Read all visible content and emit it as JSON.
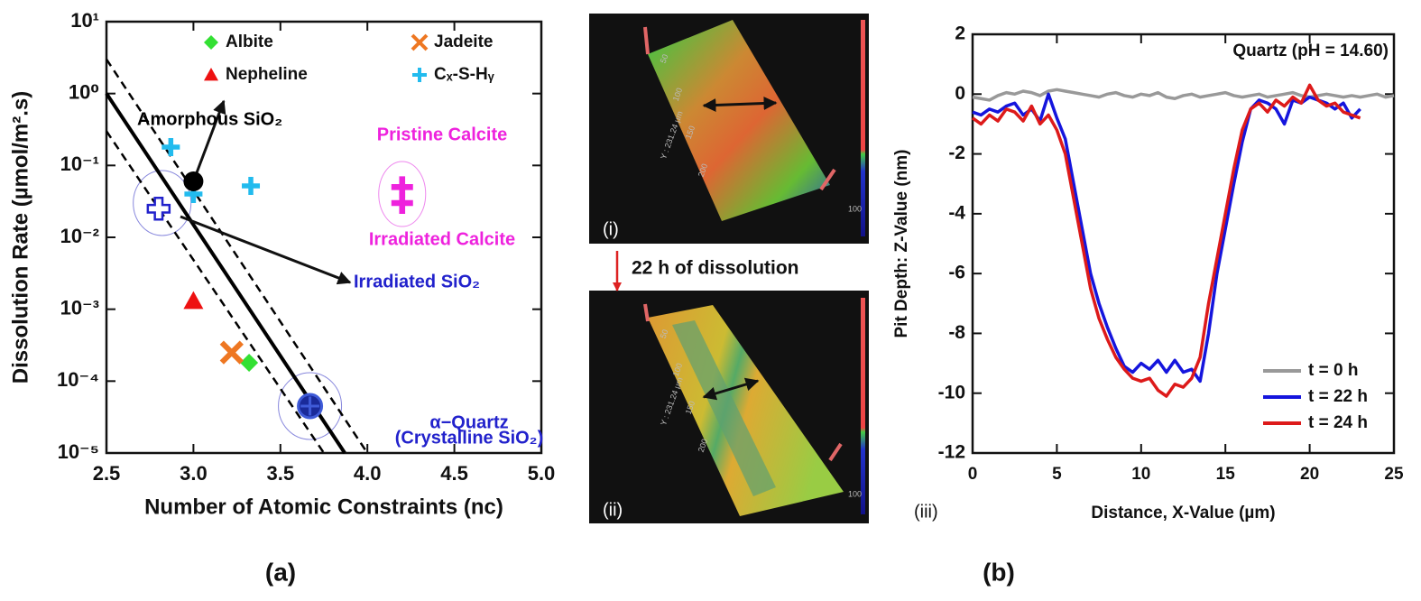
{
  "chart_data": [
    {
      "type": "scatter",
      "panel_label": "(a)",
      "xlabel": "Number of Atomic Constraints (nc)",
      "ylabel": "Dissolution Rate (µmol/m².s)",
      "xlim": [
        2.5,
        5.0
      ],
      "xticks": [
        2.5,
        {
          "value": 3,
          "label": "3.0"
        },
        3.5,
        {
          "value": 4,
          "label": "4.0"
        },
        4.5,
        {
          "value": 5,
          "label": "5.0"
        }
      ],
      "ylim": [
        1e-05,
        10
      ],
      "log_y": true,
      "yticks": [
        {
          "value": 1e-05,
          "label": "10⁻⁵"
        },
        {
          "value": 0.0001,
          "label": "10⁻⁴"
        },
        {
          "value": 0.001,
          "label": "10⁻³"
        },
        {
          "value": 0.01,
          "label": "10⁻²"
        },
        {
          "value": 0.1,
          "label": "10⁻¹"
        },
        {
          "value": 1,
          "label": "10⁰"
        },
        {
          "value": 10,
          "label": "10¹"
        }
      ],
      "legend": "top",
      "series": [
        {
          "name": "Albite",
          "color": "#33e033",
          "marker": "diamond",
          "x": [
            3.32
          ],
          "values": [
            0.00018
          ]
        },
        {
          "name": "Jadeite",
          "color": "#ee7722",
          "marker": "x",
          "x": [
            3.22
          ],
          "values": [
            0.00025
          ]
        },
        {
          "name": "Nepheline",
          "color": "#ee1111",
          "marker": "triangle",
          "x": [
            3.0
          ],
          "values": [
            0.0013
          ]
        },
        {
          "name": "Cₓ-S-Hᵧ",
          "color": "#22bbee",
          "marker": "plus",
          "x": [
            2.87,
            3.0,
            3.33
          ],
          "values": [
            0.18,
            0.04,
            0.052
          ]
        }
      ],
      "fit_lines": [
        {
          "style": "solid",
          "color": "#000000",
          "x": [
            2.5,
            3.87
          ],
          "values": [
            1,
            1e-05
          ]
        },
        {
          "style": "dashed",
          "color": "#000000",
          "x": [
            2.5,
            4.0
          ],
          "values": [
            3,
            1e-05
          ]
        },
        {
          "style": "dashed",
          "color": "#000000",
          "x": [
            2.5,
            3.75
          ],
          "values": [
            0.3,
            1e-05
          ]
        }
      ],
      "annotated_points": [
        {
          "label": [
            "Amorphous SiO₂"
          ],
          "color": "#000000",
          "marker": "circle",
          "x": 3.0,
          "value": 0.06
        },
        {
          "label": [
            "Irradiated SiO₂"
          ],
          "color": "#2222cc",
          "marker": "open-plus",
          "x": 2.8,
          "value": 0.025
        },
        {
          "label": [
            "Pristine Calcite"
          ],
          "color": "#ee22dd",
          "marker": "plus",
          "x": 4.2,
          "value": 0.05
        },
        {
          "label": [
            "Irradiated Calcite"
          ],
          "color": "#ee22dd",
          "marker": "plus",
          "x": 4.2,
          "value": 0.03
        },
        {
          "label": [
            "α−Quartz",
            "(Crystalline SiO₂)"
          ],
          "color": "#1a2a9a",
          "marker": "circle-plus",
          "x": 3.67,
          "value": 4.5e-05
        }
      ]
    },
    {
      "type": "line",
      "panel_label": "(b)",
      "inner_label": "(iii)",
      "xlabel": "Distance, X-Value (µm)",
      "ylabel": "Pit Depth: Z-Value (nm)",
      "annotation": "Quartz (pH = 14.60)",
      "xlim": [
        0,
        25
      ],
      "xticks": [
        0,
        5,
        10,
        15,
        20,
        25
      ],
      "ylim": [
        -12,
        2
      ],
      "yticks": [
        -12,
        -10,
        -8,
        -6,
        -4,
        -2,
        0,
        2
      ],
      "legend": "lower right",
      "x": [
        0,
        0.5,
        1,
        1.5,
        2,
        2.5,
        3,
        3.5,
        4,
        4.5,
        5,
        5.5,
        6,
        6.5,
        7,
        7.5,
        8,
        8.5,
        9,
        9.5,
        10,
        10.5,
        11,
        11.5,
        12,
        12.5,
        13,
        13.5,
        14,
        14.5,
        15,
        15.5,
        16,
        16.5,
        17,
        17.5,
        18,
        18.5,
        19,
        19.5,
        20,
        20.5,
        21,
        21.5,
        22,
        22.5,
        23,
        23.5,
        24,
        24.5,
        25
      ],
      "series": [
        {
          "name": "t = 0 h",
          "color": "#999999",
          "values": [
            -0.1,
            -0.15,
            -0.2,
            -0.05,
            0.05,
            0,
            0.1,
            0.05,
            -0.05,
            0.1,
            0.15,
            0.1,
            0.05,
            0,
            -0.05,
            -0.1,
            0,
            0.05,
            -0.05,
            -0.1,
            0,
            -0.05,
            0.05,
            -0.1,
            -0.15,
            -0.05,
            0,
            -0.1,
            -0.05,
            0,
            0.05,
            -0.05,
            -0.1,
            -0.05,
            0,
            -0.1,
            -0.05,
            0,
            0.05,
            -0.05,
            -0.1,
            -0.05,
            0,
            -0.05,
            -0.1,
            -0.05,
            -0.1,
            -0.05,
            0,
            -0.1,
            -0.05
          ]
        },
        {
          "name": "t = 22 h",
          "color": "#1515dd",
          "values": [
            -0.6,
            -0.7,
            -0.5,
            -0.6,
            -0.4,
            -0.3,
            -0.7,
            -0.5,
            -0.9,
            0.0,
            -0.8,
            -1.5,
            -3.0,
            -4.5,
            -6.0,
            -7.0,
            -7.8,
            -8.5,
            -9.1,
            -9.3,
            -9.0,
            -9.2,
            -8.9,
            -9.3,
            -8.9,
            -9.3,
            -9.2,
            -9.6,
            -8.0,
            -6.0,
            -4.5,
            -3.0,
            -1.6,
            -0.5,
            -0.2,
            -0.3,
            -0.5,
            -1.0,
            -0.2,
            -0.3,
            -0.1,
            -0.2,
            -0.3,
            -0.5,
            -0.3,
            -0.8,
            -0.5,
            null,
            null,
            null,
            null
          ]
        },
        {
          "name": "t = 24 h",
          "color": "#dd1a1a",
          "values": [
            -0.8,
            -1.0,
            -0.7,
            -0.9,
            -0.5,
            -0.6,
            -0.9,
            -0.4,
            -1.0,
            -0.7,
            -1.2,
            -2.0,
            -3.5,
            -5.0,
            -6.5,
            -7.5,
            -8.2,
            -8.8,
            -9.2,
            -9.5,
            -9.6,
            -9.5,
            -9.9,
            -10.1,
            -9.7,
            -9.8,
            -9.5,
            -8.8,
            -7.0,
            -5.5,
            -4.0,
            -2.5,
            -1.2,
            -0.5,
            -0.3,
            -0.6,
            -0.2,
            -0.4,
            -0.1,
            -0.3,
            0.3,
            -0.2,
            -0.4,
            -0.3,
            -0.6,
            -0.7,
            -0.8,
            null,
            null,
            null,
            null
          ]
        }
      ]
    }
  ],
  "images": [
    {
      "label": "(i)",
      "axis_label": "Y : 231.24 µm",
      "ticks": [
        "50",
        "100",
        "150",
        "200"
      ],
      "corner": "100"
    },
    {
      "label": "(ii)",
      "axis_label": "Y : 231.24 µm",
      "ticks": [
        "50",
        "100",
        "150",
        "200"
      ],
      "corner": "100"
    }
  ],
  "transition": "22 h of dissolution"
}
